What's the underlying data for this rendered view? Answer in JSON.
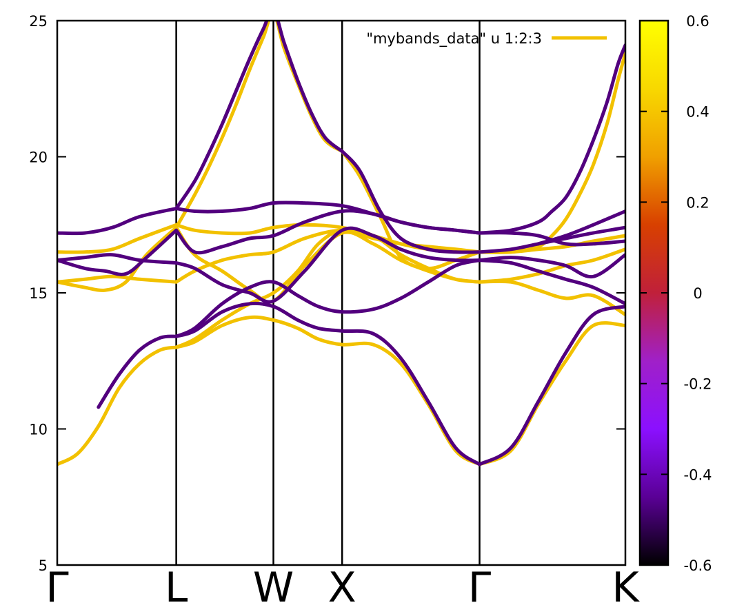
{
  "chart_data": {
    "type": "line",
    "title": "",
    "xlabel": "",
    "ylabel": "",
    "ylim": [
      5,
      25
    ],
    "yticks": [
      5,
      10,
      15,
      20,
      25
    ],
    "grid": false,
    "legend": {
      "label": "\"mybands_data\" u 1:2:3",
      "placement": "top-right",
      "color": "#f2c100"
    },
    "kpoint_labels": [
      "Γ",
      "L",
      "W",
      "X",
      "Γ",
      "K"
    ],
    "kpoint_positions": [
      0,
      0.866,
      1.573,
      2.073,
      3.073,
      4.134
    ],
    "colorbar": {
      "range": [
        -0.6,
        0.6
      ],
      "ticks": [
        "0.6",
        "0.4",
        "0.2",
        "0",
        "-0.2",
        "-0.4",
        "-0.6"
      ],
      "palette": [
        "#000000",
        "#5a0096",
        "#8b10ff",
        "#a020c8",
        "#c0203a",
        "#d84000",
        "#f0a000",
        "#f8d800",
        "#ffff00"
      ]
    },
    "series_colors": {
      "positive": "#f2c100",
      "negative": "#52007e"
    },
    "series": [
      {
        "weight": 0.5,
        "x": [
          0,
          0.15,
          0.3,
          0.45,
          0.6,
          0.75,
          0.866
        ],
        "y": [
          8.7,
          9.1,
          10.1,
          11.5,
          12.4,
          12.9,
          13.0
        ]
      },
      {
        "weight": -0.5,
        "x": [
          0.3,
          0.45,
          0.6,
          0.75,
          0.866
        ],
        "y": [
          10.8,
          12.0,
          12.9,
          13.35,
          13.4
        ]
      },
      {
        "weight": -0.5,
        "x": [
          0.866,
          1.0,
          1.2,
          1.4,
          1.573,
          1.75,
          1.9,
          2.073,
          2.3,
          2.5,
          2.7,
          2.9,
          3.073
        ],
        "y": [
          13.4,
          13.7,
          14.6,
          15.2,
          15.4,
          14.9,
          14.5,
          14.3,
          14.4,
          14.8,
          15.4,
          16.0,
          16.2
        ]
      },
      {
        "weight": 0.5,
        "x": [
          0.866,
          1.0,
          1.2,
          1.4,
          1.573,
          1.75,
          1.9,
          2.073,
          2.3,
          2.5,
          2.7,
          2.9,
          3.073
        ],
        "y": [
          13.0,
          13.3,
          14.0,
          14.6,
          15.0,
          15.8,
          16.8,
          17.3,
          17.1,
          16.4,
          15.9,
          15.5,
          15.4
        ]
      },
      {
        "weight": 0.5,
        "x": [
          0.866,
          1.0,
          1.2,
          1.4,
          1.573,
          1.75,
          1.9,
          2.073,
          2.3,
          2.5,
          2.7,
          2.9,
          3.073
        ],
        "y": [
          13.0,
          13.2,
          13.8,
          14.1,
          14.0,
          13.7,
          13.3,
          13.1,
          13.1,
          12.4,
          10.9,
          9.2,
          8.7
        ]
      },
      {
        "weight": -0.5,
        "x": [
          0.866,
          1.0,
          1.2,
          1.4,
          1.573,
          1.75,
          1.9,
          2.073,
          2.3,
          2.5,
          2.7,
          2.9,
          3.073
        ],
        "y": [
          13.4,
          13.6,
          14.3,
          14.6,
          14.5,
          14.0,
          13.7,
          13.6,
          13.5,
          12.6,
          11.0,
          9.3,
          8.7
        ]
      },
      {
        "weight": 0.5,
        "x": [
          0,
          0.2,
          0.4,
          0.6,
          0.866
        ],
        "y": [
          15.4,
          15.5,
          15.6,
          15.5,
          15.4
        ]
      },
      {
        "weight": -0.5,
        "x": [
          0,
          0.2,
          0.4,
          0.6,
          0.866
        ],
        "y": [
          16.2,
          16.3,
          16.4,
          16.2,
          16.1
        ]
      },
      {
        "weight": 0.5,
        "x": [
          0,
          0.2,
          0.35,
          0.5,
          0.65,
          0.866
        ],
        "y": [
          15.4,
          15.2,
          15.1,
          15.4,
          16.4,
          17.4
        ]
      },
      {
        "weight": -0.5,
        "x": [
          0,
          0.2,
          0.35,
          0.5,
          0.65,
          0.866
        ],
        "y": [
          16.2,
          15.9,
          15.8,
          15.7,
          16.3,
          17.3
        ]
      },
      {
        "weight": 0.5,
        "x": [
          0,
          0.2,
          0.4,
          0.6,
          0.866
        ],
        "y": [
          16.5,
          16.5,
          16.6,
          17.0,
          17.5
        ]
      },
      {
        "weight": -0.5,
        "x": [
          0,
          0.2,
          0.4,
          0.6,
          0.866
        ],
        "y": [
          17.2,
          17.2,
          17.4,
          17.8,
          18.1
        ]
      },
      {
        "weight": 0.5,
        "x": [
          0.866,
          1.0,
          1.1,
          1.2,
          1.3,
          1.4,
          1.5,
          1.573,
          1.65,
          1.75,
          1.85,
          1.95,
          2.073
        ],
        "y": [
          17.4,
          18.6,
          19.6,
          20.7,
          21.9,
          23.2,
          24.4,
          25.3,
          24.0,
          22.7,
          21.5,
          20.6,
          20.2
        ]
      },
      {
        "weight": -0.5,
        "x": [
          0.866,
          1.0,
          1.1,
          1.2,
          1.3,
          1.4,
          1.5,
          1.573,
          1.65,
          1.75,
          1.85,
          1.95,
          2.073
        ],
        "y": [
          18.1,
          19.1,
          20.1,
          21.2,
          22.4,
          23.6,
          24.7,
          25.4,
          24.2,
          22.8,
          21.6,
          20.7,
          20.2
        ]
      },
      {
        "weight": -0.5,
        "x": [
          2.073,
          2.2,
          2.35,
          2.5,
          2.7,
          2.9,
          3.073
        ],
        "y": [
          20.2,
          19.5,
          18.0,
          17.0,
          16.6,
          16.5,
          16.5
        ]
      },
      {
        "weight": 0.5,
        "x": [
          2.073,
          2.2,
          2.35,
          2.5,
          2.7,
          2.9,
          3.073
        ],
        "y": [
          20.2,
          19.3,
          17.8,
          16.3,
          15.9,
          16.2,
          16.5
        ]
      },
      {
        "weight": -0.5,
        "x": [
          0.866,
          1.0,
          1.2,
          1.4,
          1.573,
          1.8,
          2.073,
          2.3,
          2.5,
          2.7,
          2.9,
          3.073
        ],
        "y": [
          16.1,
          15.9,
          15.3,
          15.0,
          14.7,
          15.8,
          17.3,
          17.1,
          16.6,
          16.3,
          16.2,
          16.2
        ]
      },
      {
        "weight": 0.5,
        "x": [
          0.866,
          1.0,
          1.2,
          1.4,
          1.573,
          1.8,
          2.073,
          2.3,
          2.5,
          2.7,
          2.9,
          3.073
        ],
        "y": [
          17.4,
          16.4,
          15.8,
          15.1,
          14.7,
          16.0,
          17.2,
          16.8,
          16.2,
          15.8,
          15.5,
          15.4
        ]
      },
      {
        "weight": 0.5,
        "x": [
          0.866,
          1.0,
          1.2,
          1.4,
          1.573,
          1.8,
          2.073,
          2.3,
          2.5,
          2.7,
          2.9,
          3.073
        ],
        "y": [
          15.4,
          15.8,
          16.2,
          16.4,
          16.5,
          17.0,
          17.3,
          17.0,
          16.8,
          16.7,
          16.6,
          16.5
        ]
      },
      {
        "weight": -0.5,
        "x": [
          0.866,
          1.0,
          1.2,
          1.4,
          1.573,
          1.8,
          2.073,
          2.3,
          2.5,
          2.7,
          2.9,
          3.073
        ],
        "y": [
          17.3,
          16.5,
          16.7,
          17.0,
          17.1,
          17.6,
          18.0,
          17.9,
          17.6,
          17.4,
          17.3,
          17.2
        ]
      },
      {
        "weight": -0.5,
        "x": [
          0.866,
          1.0,
          1.2,
          1.4,
          1.573,
          1.8,
          2.073,
          2.3,
          2.5,
          2.7,
          2.9,
          3.073
        ],
        "y": [
          18.1,
          18.0,
          18.0,
          18.1,
          18.3,
          18.3,
          18.2,
          17.9,
          17.6,
          17.4,
          17.3,
          17.2
        ]
      },
      {
        "weight": 0.5,
        "x": [
          0.866,
          1.0,
          1.2,
          1.4,
          1.573,
          1.8,
          2.073,
          2.3,
          2.5,
          2.7,
          2.9,
          3.073
        ],
        "y": [
          17.5,
          17.3,
          17.2,
          17.2,
          17.4,
          17.5,
          17.4,
          17.1,
          16.8,
          16.6,
          16.5,
          16.5
        ]
      },
      {
        "weight": -0.5,
        "x": [
          3.073,
          3.3,
          3.5,
          3.7,
          3.9,
          4.134
        ],
        "y": [
          8.7,
          9.3,
          11.0,
          12.8,
          14.2,
          14.5
        ]
      },
      {
        "weight": 0.5,
        "x": [
          3.073,
          3.3,
          3.5,
          3.7,
          3.9,
          4.134
        ],
        "y": [
          8.7,
          9.2,
          10.9,
          12.5,
          13.8,
          13.8
        ]
      },
      {
        "weight": 0.5,
        "x": [
          3.073,
          3.3,
          3.5,
          3.7,
          3.9,
          4.134
        ],
        "y": [
          15.4,
          15.4,
          15.1,
          14.8,
          14.9,
          14.2
        ]
      },
      {
        "weight": -0.5,
        "x": [
          3.073,
          3.3,
          3.5,
          3.7,
          3.9,
          4.134
        ],
        "y": [
          16.2,
          16.1,
          15.8,
          15.5,
          15.2,
          14.6
        ]
      },
      {
        "weight": 0.5,
        "x": [
          3.073,
          3.3,
          3.5,
          3.7,
          3.9,
          4.134
        ],
        "y": [
          15.4,
          15.5,
          15.7,
          16.0,
          16.2,
          16.6
        ]
      },
      {
        "weight": -0.5,
        "x": [
          3.073,
          3.3,
          3.5,
          3.7,
          3.9,
          4.134
        ],
        "y": [
          16.2,
          16.3,
          16.2,
          16.0,
          15.6,
          16.4
        ]
      },
      {
        "weight": 0.5,
        "x": [
          3.073,
          3.3,
          3.5,
          3.7,
          3.9,
          4.134
        ],
        "y": [
          16.5,
          16.5,
          16.6,
          16.7,
          16.9,
          17.1
        ]
      },
      {
        "weight": -0.5,
        "x": [
          3.073,
          3.3,
          3.5,
          3.7,
          3.9,
          4.134
        ],
        "y": [
          16.5,
          16.6,
          16.8,
          17.0,
          17.2,
          17.4
        ]
      },
      {
        "weight": -0.5,
        "x": [
          3.073,
          3.3,
          3.5,
          3.7,
          3.9,
          4.134
        ],
        "y": [
          17.2,
          17.2,
          17.1,
          16.8,
          16.8,
          16.9
        ]
      },
      {
        "weight": -0.5,
        "x": [
          3.073,
          3.3,
          3.5,
          3.6,
          3.7,
          3.8,
          3.9,
          4.0,
          4.08,
          4.134
        ],
        "y": [
          17.2,
          17.3,
          17.6,
          18.0,
          18.5,
          19.4,
          20.6,
          22.0,
          23.4,
          24.1
        ]
      },
      {
        "weight": 0.5,
        "x": [
          3.073,
          3.3,
          3.5,
          3.6,
          3.7,
          3.8,
          3.9,
          4.0,
          4.08,
          4.134
        ],
        "y": [
          16.5,
          16.5,
          16.7,
          17.1,
          17.7,
          18.6,
          19.7,
          21.2,
          22.8,
          23.8
        ]
      },
      {
        "weight": -0.5,
        "x": [
          3.5,
          3.7,
          3.9,
          4.134
        ],
        "y": [
          16.8,
          17.1,
          17.5,
          18.0
        ]
      }
    ]
  }
}
